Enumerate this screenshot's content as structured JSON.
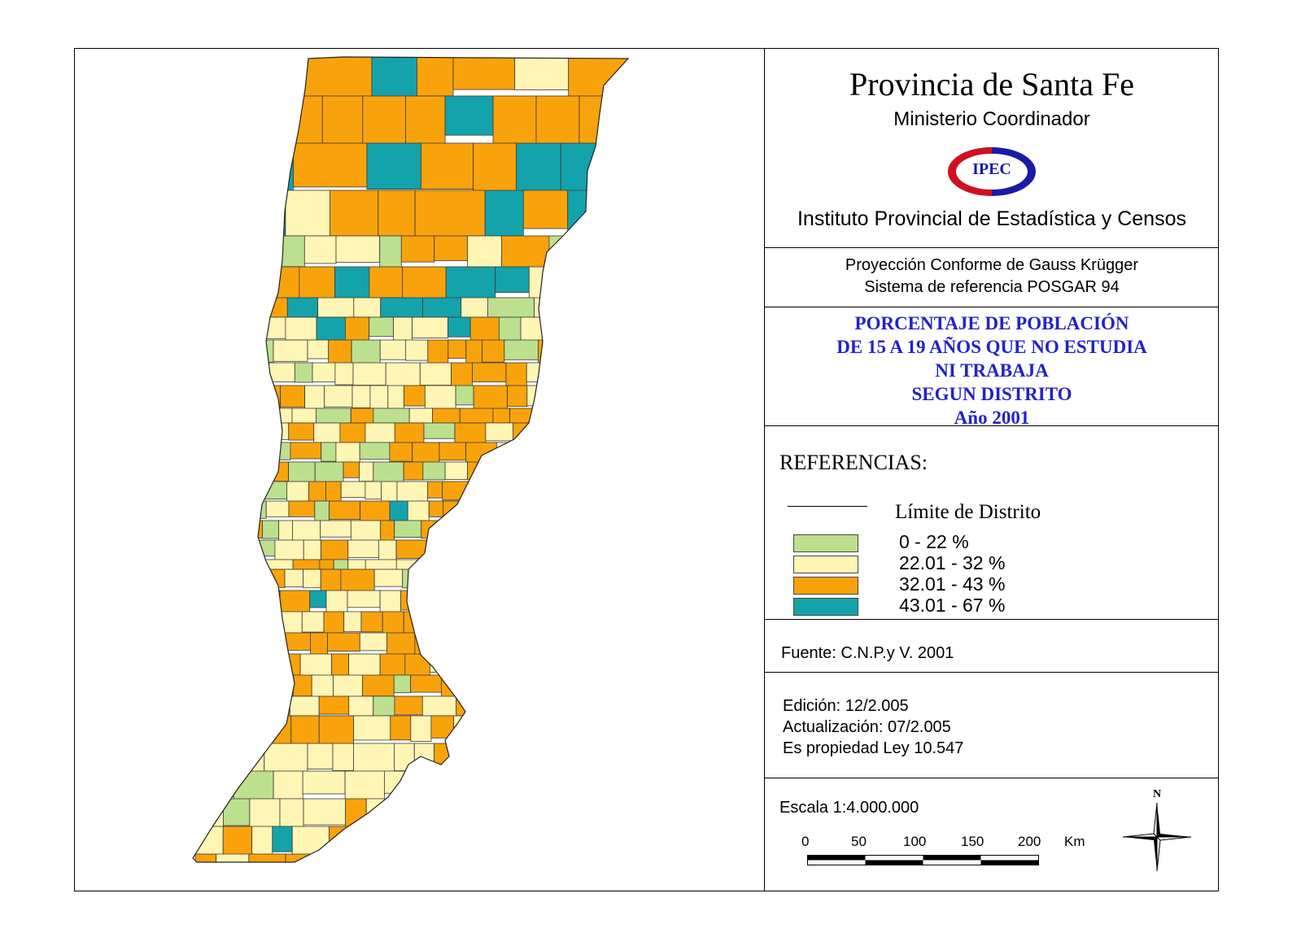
{
  "header": {
    "title": "Provincia de Santa Fe",
    "ministry": "Ministerio Coordinador",
    "logo_text": "IPEC",
    "institute": "Instituto Provincial de Estadística y Censos"
  },
  "projection": {
    "line1": "Proyección Conforme de Gauss Krügger",
    "line2": "Sistema de referencia POSGAR 94"
  },
  "theme": {
    "line1": "PORCENTAJE DE POBLACIÓN",
    "line2": "DE 15 A 19 AÑOS QUE NO ESTUDIA",
    "line3": "NI TRABAJA",
    "line4": "SEGUN DISTRITO",
    "line5": "Año 2001"
  },
  "legend": {
    "heading": "REFERENCIAS:",
    "boundary_label": "Límite de Distrito",
    "classes": [
      {
        "label": "0 - 22 %",
        "color": "#bde08f"
      },
      {
        "label": "22.01 - 32 %",
        "color": "#fff5b4"
      },
      {
        "label": "32.01 - 43 %",
        "color": "#f9a30c"
      },
      {
        "label": "43.01 - 67 %",
        "color": "#14a3ab"
      }
    ]
  },
  "source": {
    "text": "Fuente:  C.N.P.y V. 2001"
  },
  "edition": {
    "edicion": "Edición:  12/2.005",
    "actualizacion": "Actualización:  07/2.005",
    "propiedad": "Es propiedad Ley 10.547"
  },
  "scale": {
    "label": "Escala 1:4.000.000",
    "ticks": [
      "0",
      "50",
      "100",
      "150",
      "200"
    ],
    "unit": "Km"
  },
  "north_label": "N"
}
